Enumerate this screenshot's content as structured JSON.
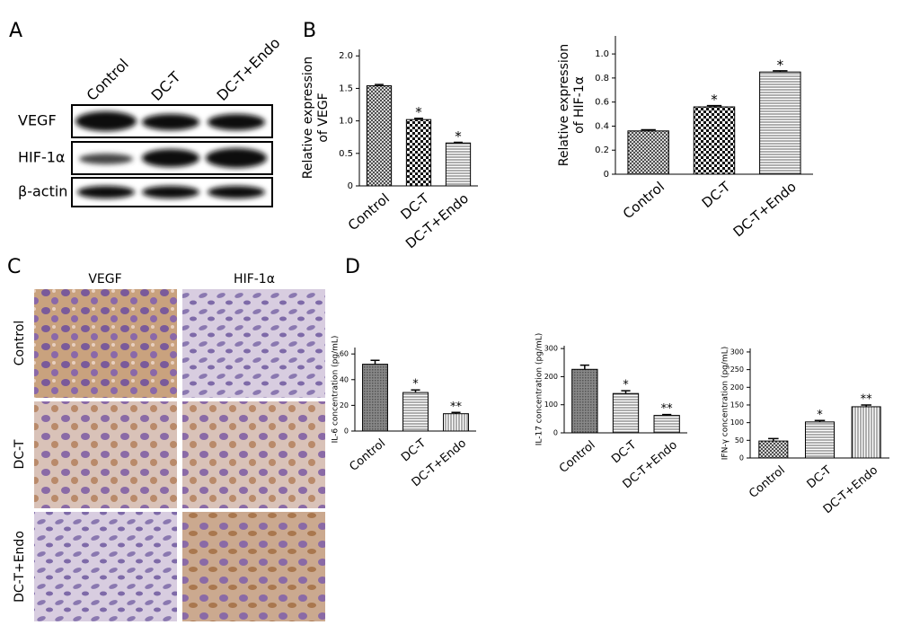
{
  "figure": {
    "panel_labels": [
      "A",
      "B",
      "C",
      "D"
    ],
    "blot_lanes": [
      "Control",
      "DC-T",
      "DC-T+Endo"
    ],
    "blot_rows": [
      "VEGF",
      "HIF-1α",
      "β-actin"
    ],
    "ihc_columns": [
      "VEGF",
      "HIF-1α"
    ],
    "ihc_rows": [
      "Control",
      "DC-T",
      "DC-T+Endo"
    ]
  },
  "chart_data": [
    {
      "type": "bar",
      "ylabel": [
        "Relative expression",
        "of VEGF"
      ],
      "categories": [
        "Control",
        "DC-T",
        "DC-T+Endo"
      ],
      "values": [
        1.54,
        1.02,
        0.66
      ],
      "errors": [
        0.02,
        0.02,
        0.01
      ],
      "significance": [
        null,
        "*",
        "*"
      ],
      "bar_patterns": [
        "crosshatch",
        "checker",
        "hlines"
      ],
      "ylim": [
        0,
        2.1
      ],
      "yticks": [
        0,
        0.5,
        {
          "value": 1,
          "label": "1.0"
        },
        1.5,
        {
          "value": 2,
          "label": "2.0"
        }
      ]
    },
    {
      "type": "bar",
      "ylabel": [
        "Relative expression",
        "of HIF-1α"
      ],
      "categories": [
        "Control",
        "DC-T",
        "DC-T+Endo"
      ],
      "values": [
        0.36,
        0.56,
        0.85
      ],
      "errors": [
        0.01,
        0.01,
        0.01
      ],
      "significance": [
        null,
        "*",
        "*"
      ],
      "bar_patterns": [
        "crosshatch",
        "checker",
        "hlines"
      ],
      "ylim": [
        0,
        1.15
      ],
      "yticks": [
        0,
        0.2,
        0.4,
        0.6,
        0.8,
        {
          "value": 1,
          "label": "1.0"
        }
      ]
    },
    {
      "type": "bar",
      "ylabel": [
        "IL-6 concentration (pg/mL)"
      ],
      "categories": [
        "Control",
        "DC-T",
        "DC-T+Endo"
      ],
      "values": [
        52,
        30,
        13.5
      ],
      "errors": [
        3,
        2,
        1
      ],
      "significance": [
        null,
        "*",
        "**"
      ],
      "bar_patterns": [
        "dots",
        "hlines",
        "vlines"
      ],
      "ylim": [
        0,
        65
      ],
      "yticks": [
        0,
        20,
        40,
        60
      ]
    },
    {
      "type": "bar",
      "ylabel": [
        "IL-17 concentration (pg/mL)"
      ],
      "categories": [
        "Control",
        "DC-T",
        "DC-T+Endo"
      ],
      "values": [
        226,
        140,
        62
      ],
      "errors": [
        15,
        10,
        3
      ],
      "significance": [
        null,
        "*",
        "**"
      ],
      "bar_patterns": [
        "dots",
        "hlines",
        "hlines"
      ],
      "ylim": [
        0,
        310
      ],
      "yticks": [
        0,
        100,
        200,
        300
      ]
    },
    {
      "type": "bar",
      "ylabel": [
        "IFN-γ concentration (pg/mL)"
      ],
      "categories": [
        "Control",
        "DC-T",
        "DC-T+Endo"
      ],
      "values": [
        48,
        102,
        145
      ],
      "errors": [
        7,
        4,
        5
      ],
      "significance": [
        null,
        "*",
        "**"
      ],
      "bar_patterns": [
        "crosshatch",
        "hlines",
        "vlines"
      ],
      "ylim": [
        0,
        310
      ],
      "yticks": [
        0,
        50,
        100,
        150,
        200,
        250,
        300
      ]
    }
  ]
}
